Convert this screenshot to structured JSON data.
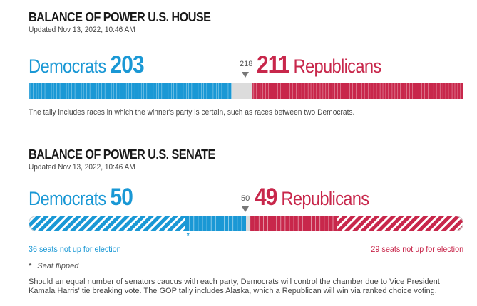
{
  "house": {
    "title": "BALANCE OF POWER U.S. HOUSE",
    "updated": "Updated Nov 13, 2022, 10:46 AM",
    "dem_label": "Democrats",
    "rep_label": "Republicans",
    "majority_label": "218",
    "note": "The tally includes races in which the winner's party is certain, such as races between two Democrats."
  },
  "senate": {
    "title": "BALANCE OF POWER U.S. SENATE",
    "updated": "Updated Nov 13, 2022, 10:46 AM",
    "dem_label": "Democrats",
    "rep_label": "Republicans",
    "majority_label": "50",
    "dem_not_up": "36 seats not up for election",
    "rep_not_up": "29 seats not up for election",
    "flipped_star": "*",
    "flipped_label": "Seat flipped",
    "footer": "Should an equal number of senators caucus with each party, Democrats will control the chamber due to Vice President Kamala Harris' tie breaking vote. The GOP tally includes Alaska, which a Republican will win via ranked choice voting."
  },
  "colors": {
    "dem": "#1a98d5",
    "rep": "#c8274b",
    "undecided": "#dcdcdc"
  },
  "chart_data": [
    {
      "type": "bar",
      "title": "BALANCE OF POWER U.S. HOUSE",
      "total_seats": 435,
      "majority": 218,
      "series": [
        {
          "name": "Democrats",
          "value": 203
        },
        {
          "name": "Republicans",
          "value": 211
        }
      ],
      "undecided": 21
    },
    {
      "type": "bar",
      "title": "BALANCE OF POWER U.S. SENATE",
      "total_seats": 100,
      "majority": 50,
      "series": [
        {
          "name": "Democrats",
          "value": 50,
          "not_up": 36,
          "flipped": 1
        },
        {
          "name": "Republicans",
          "value": 49,
          "not_up": 29
        }
      ],
      "undecided": 1
    }
  ]
}
